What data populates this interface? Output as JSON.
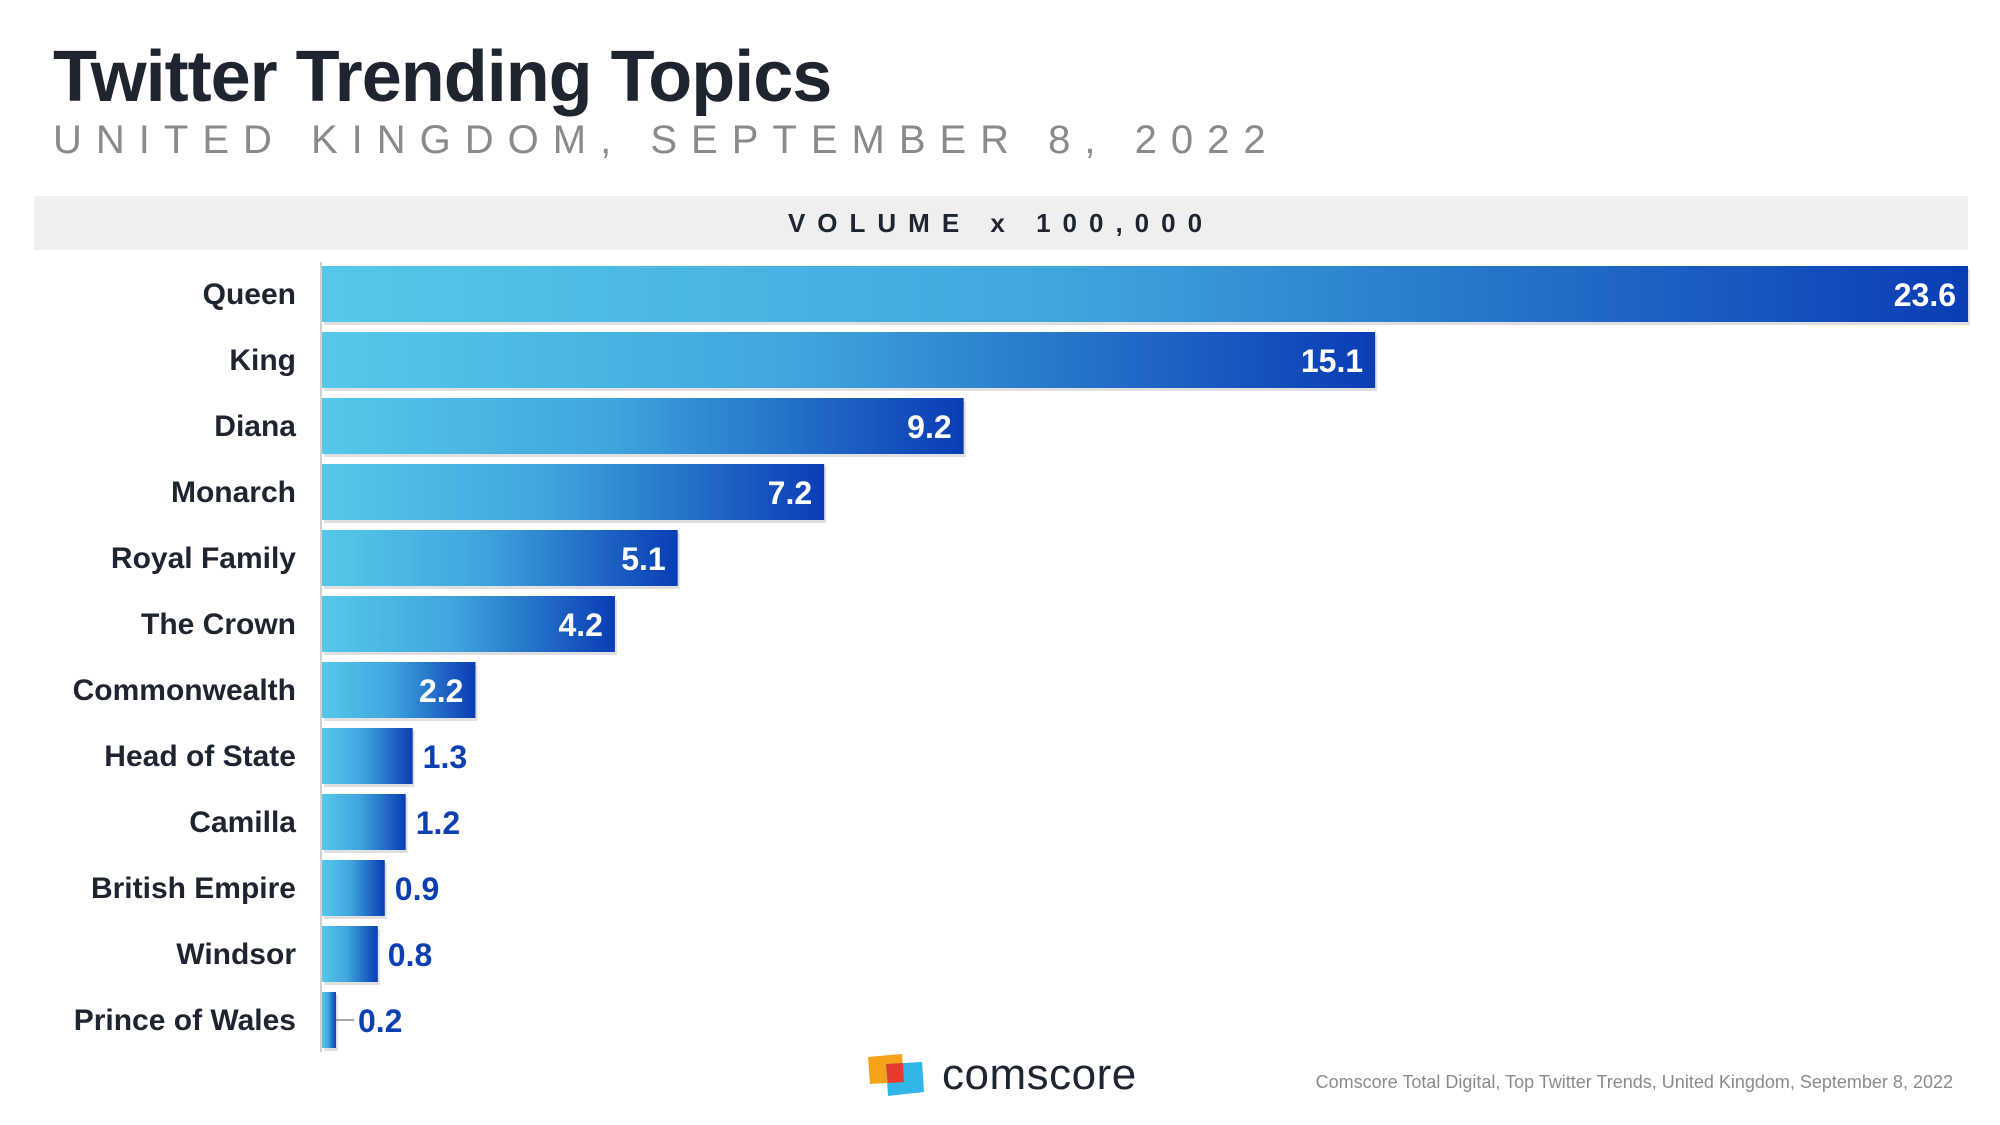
{
  "header": {
    "title": "Twitter Trending Topics",
    "subtitle": "UNITED KINGDOM, SEPTEMBER 8, 2022",
    "volume_label": "VOLUME x 100,000"
  },
  "chart_data": {
    "type": "bar",
    "orientation": "horizontal",
    "title": "Twitter Trending Topics",
    "subtitle": "UNITED KINGDOM, SEPTEMBER 8, 2022",
    "xlabel": "VOLUME x 100,000",
    "ylabel": "",
    "categories": [
      "Queen",
      "King",
      "Diana",
      "Monarch",
      "Royal Family",
      "The Crown",
      "Commonwealth",
      "Head of State",
      "Camilla",
      "British Empire",
      "Windsor",
      "Prince of Wales"
    ],
    "values": [
      23.6,
      15.1,
      9.2,
      7.2,
      5.1,
      4.2,
      2.2,
      1.3,
      1.2,
      0.9,
      0.8,
      0.2
    ],
    "value_labels": [
      "23.6",
      "15.1",
      "9.2",
      "7.2",
      "5.1",
      "4.2",
      "2.2",
      "1.3",
      "1.2",
      "0.9",
      "0.8",
      "0.2"
    ],
    "xlim": [
      0,
      23.6
    ],
    "grid": false,
    "legend": "none",
    "colors": {
      "bar_start": "#55c8ea",
      "bar_end": "#0a3db5",
      "label_inside": "#ffffff",
      "label_outside": "#0c3fb0"
    }
  },
  "footer": {
    "brand": "comscore",
    "source": "Comscore Total Digital, Top Twitter Trends, United Kingdom, September 8, 2022",
    "logo_icon": "comscore-logo-icon",
    "colors": {
      "logo_orange": "#f7a21b",
      "logo_red": "#e8392f",
      "logo_blue": "#2fb5e6"
    }
  }
}
